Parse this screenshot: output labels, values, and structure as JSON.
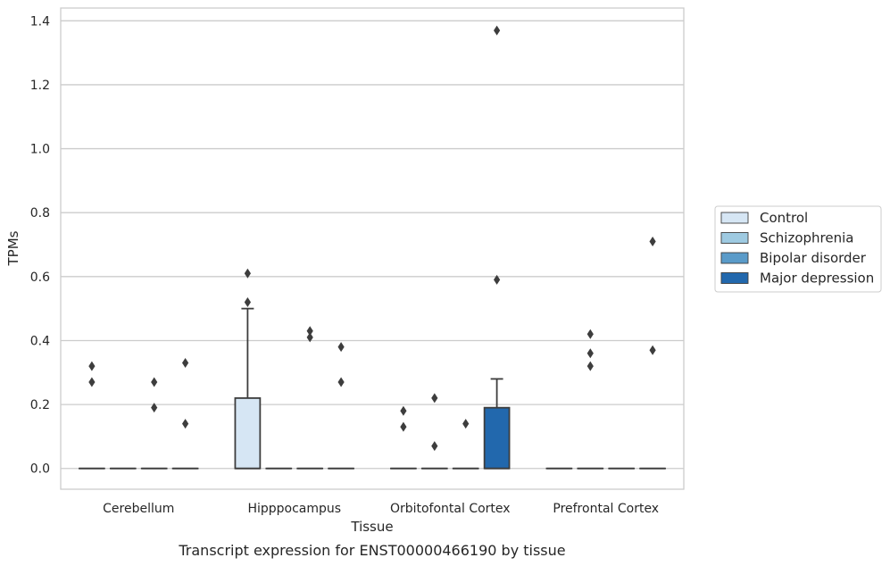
{
  "chart_data": {
    "type": "box",
    "xlabel": "Tissue",
    "ylabel": "TPMs",
    "caption": "Transcript expression for ENST00000466190 by tissue",
    "ylim": [
      -0.065,
      1.44
    ],
    "yticks": [
      0.0,
      0.2,
      0.4,
      0.6,
      0.8,
      1.0,
      1.2,
      1.4
    ],
    "ytick_labels": [
      "0.0",
      "0.2",
      "0.4",
      "0.6",
      "0.8",
      "1.0",
      "1.2",
      "1.4"
    ],
    "grid": "horizontal",
    "legend_placement": "right",
    "categories": [
      "Cerebellum",
      "Hipppocampus",
      "Orbitofontal Cortex",
      "Prefrontal Cortex"
    ],
    "series": [
      {
        "name": "Control",
        "color": "#d6e6f4",
        "boxes": [
          {
            "q1": 0,
            "median": 0,
            "q3": 0,
            "whisker_low": 0,
            "whisker_high": 0,
            "outliers": [
              0.32,
              0.27
            ]
          },
          {
            "q1": 0,
            "median": 0,
            "q3": 0.22,
            "whisker_low": 0,
            "whisker_high": 0.5,
            "outliers": [
              0.61,
              0.52
            ]
          },
          {
            "q1": 0,
            "median": 0,
            "q3": 0,
            "whisker_low": 0,
            "whisker_high": 0,
            "outliers": [
              0.18,
              0.13
            ]
          },
          {
            "q1": 0,
            "median": 0,
            "q3": 0,
            "whisker_low": 0,
            "whisker_high": 0,
            "outliers": []
          }
        ]
      },
      {
        "name": "Schizophrenia",
        "color": "#9ecae1",
        "boxes": [
          {
            "q1": 0,
            "median": 0,
            "q3": 0,
            "whisker_low": 0,
            "whisker_high": 0,
            "outliers": []
          },
          {
            "q1": 0,
            "median": 0,
            "q3": 0,
            "whisker_low": 0,
            "whisker_high": 0,
            "outliers": []
          },
          {
            "q1": 0,
            "median": 0,
            "q3": 0,
            "whisker_low": 0,
            "whisker_high": 0,
            "outliers": [
              0.22,
              0.07
            ]
          },
          {
            "q1": 0,
            "median": 0,
            "q3": 0,
            "whisker_low": 0,
            "whisker_high": 0,
            "outliers": [
              0.42,
              0.36,
              0.32
            ]
          }
        ]
      },
      {
        "name": "Bipolar disorder",
        "color": "#5a9bc9",
        "boxes": [
          {
            "q1": 0,
            "median": 0,
            "q3": 0,
            "whisker_low": 0,
            "whisker_high": 0,
            "outliers": [
              0.27,
              0.19
            ]
          },
          {
            "q1": 0,
            "median": 0,
            "q3": 0,
            "whisker_low": 0,
            "whisker_high": 0,
            "outliers": [
              0.43,
              0.41
            ]
          },
          {
            "q1": 0,
            "median": 0,
            "q3": 0,
            "whisker_low": 0,
            "whisker_high": 0,
            "outliers": [
              0.14
            ]
          },
          {
            "q1": 0,
            "median": 0,
            "q3": 0,
            "whisker_low": 0,
            "whisker_high": 0,
            "outliers": []
          }
        ]
      },
      {
        "name": "Major depression",
        "color": "#2268ad",
        "boxes": [
          {
            "q1": 0,
            "median": 0,
            "q3": 0,
            "whisker_low": 0,
            "whisker_high": 0,
            "outliers": [
              0.33,
              0.14
            ]
          },
          {
            "q1": 0,
            "median": 0,
            "q3": 0,
            "whisker_low": 0,
            "whisker_high": 0,
            "outliers": [
              0.38,
              0.27
            ]
          },
          {
            "q1": 0,
            "median": 0,
            "q3": 0.19,
            "whisker_low": 0,
            "whisker_high": 0.28,
            "outliers": [
              1.37,
              0.59
            ]
          },
          {
            "q1": 0,
            "median": 0,
            "q3": 0,
            "whisker_low": 0,
            "whisker_high": 0,
            "outliers": [
              0.71,
              0.37
            ]
          }
        ]
      }
    ]
  }
}
